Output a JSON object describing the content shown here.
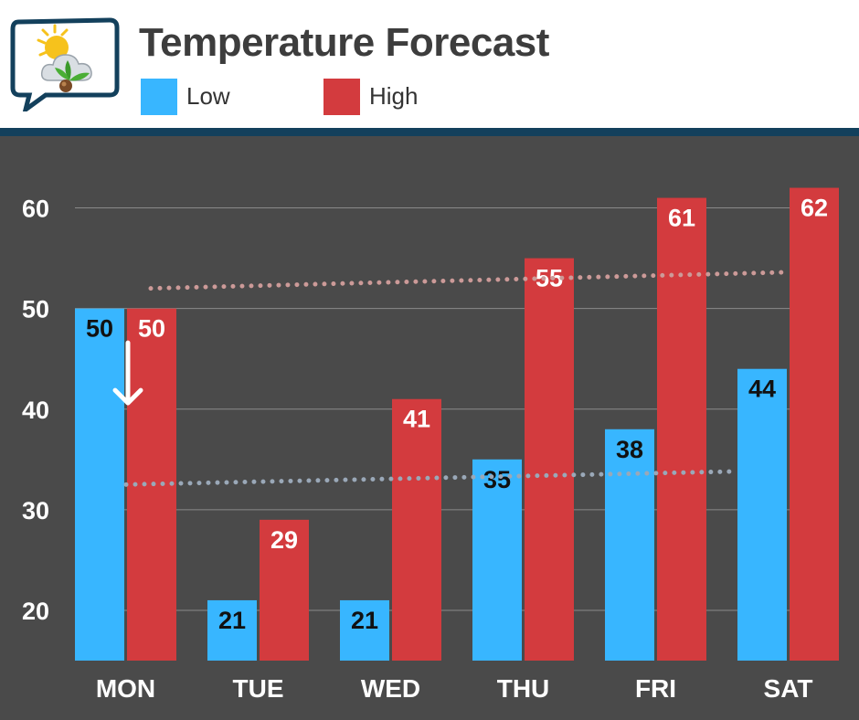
{
  "header": {
    "title": "Temperature Forecast",
    "logo_icon": "weather-sun-cloud-leaf-icon"
  },
  "legend": [
    {
      "label": "Low",
      "color": "#38b6ff"
    },
    {
      "label": "High",
      "color": "#d33b3e"
    }
  ],
  "colors": {
    "background": "#4a4a4a",
    "accent_dark": "#13405c",
    "grid": "#8a8a8a",
    "low_trend": "#9aa8b8",
    "high_trend": "#cc9a98"
  },
  "chart_data": {
    "type": "bar",
    "title": "Temperature Forecast",
    "xlabel": "",
    "ylabel": "",
    "categories": [
      "MON",
      "TUE",
      "WED",
      "THU",
      "FRI",
      "SAT"
    ],
    "series": [
      {
        "name": "Low",
        "values": [
          50,
          21,
          21,
          35,
          38,
          44
        ],
        "color": "#38b6ff"
      },
      {
        "name": "High",
        "values": [
          50,
          29,
          41,
          55,
          61,
          62
        ],
        "color": "#d33b3e"
      }
    ],
    "ylim": [
      15,
      65
    ],
    "yticks": [
      20,
      30,
      40,
      50,
      60
    ],
    "grid": true,
    "legend_position": "top-left",
    "annotations": [
      {
        "type": "arrow-down",
        "category": "MON",
        "series": "Low"
      }
    ],
    "trendlines": [
      {
        "series": "High",
        "from": 52,
        "to": 53.6,
        "style": "dotted"
      },
      {
        "series": "Low",
        "from": 32.5,
        "to": 33.8,
        "style": "dotted"
      }
    ]
  }
}
